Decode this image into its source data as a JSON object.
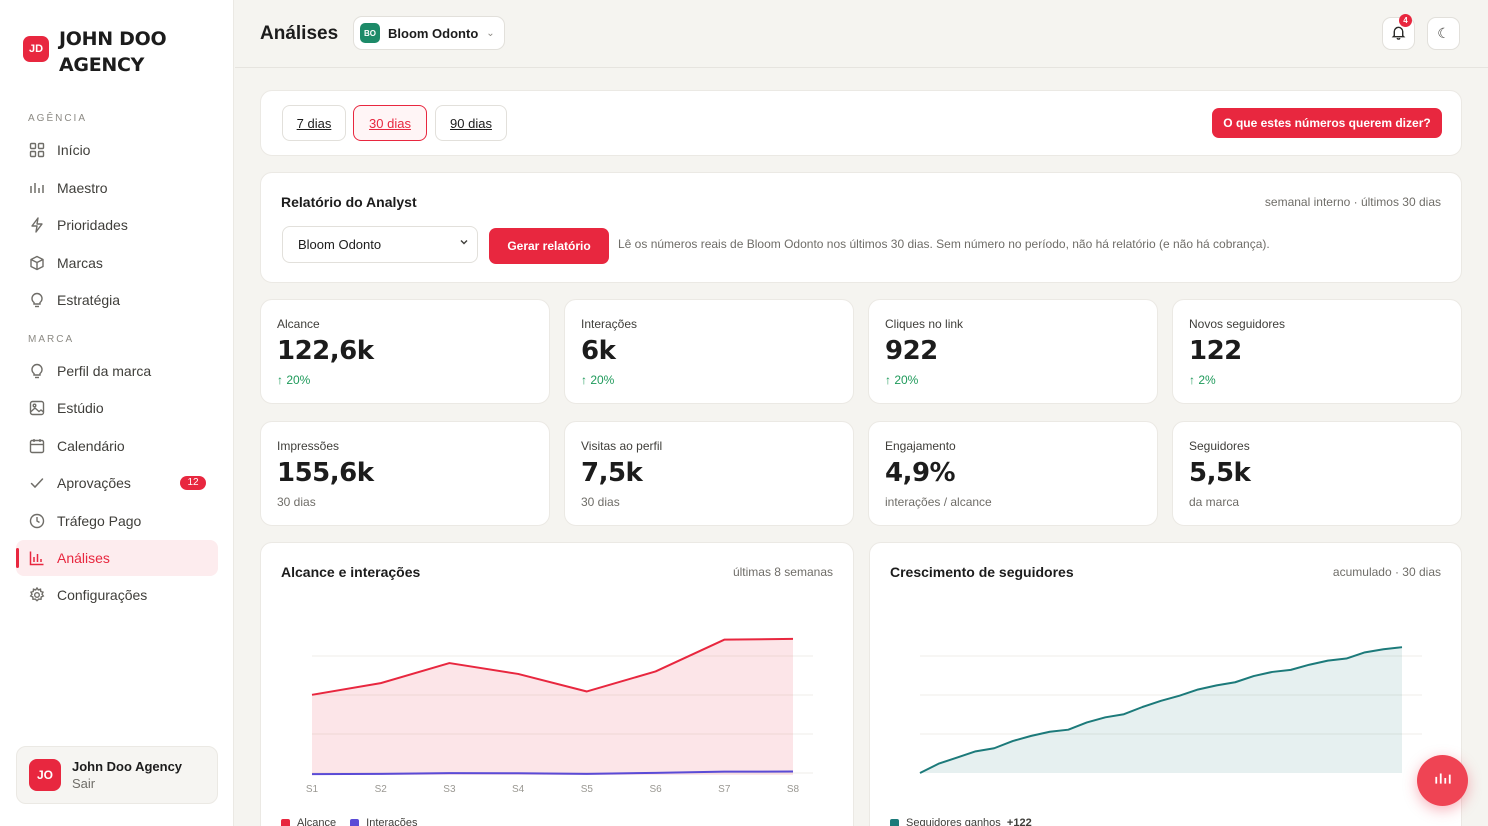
{
  "sidebar": {
    "brand_logo": "JD",
    "brand_line1": "JOHN DOO",
    "brand_line2": "AGENCY",
    "section_agencia": "AGÊNCIA",
    "section_marca": "MARCA",
    "items": [
      {
        "label": "Início",
        "icon": "grid-icon"
      },
      {
        "label": "Maestro",
        "icon": "bar-chart-icon"
      },
      {
        "label": "Prioridades",
        "icon": "bolt-icon"
      },
      {
        "label": "Marcas",
        "icon": "cube-icon"
      },
      {
        "label": "Estratégia",
        "icon": "lightbulb-icon"
      },
      {
        "label": "Perfil da marca",
        "icon": "lightbulb-icon"
      },
      {
        "label": "Estúdio",
        "icon": "image-icon"
      },
      {
        "label": "Calendário",
        "icon": "calendar-icon"
      },
      {
        "label": "Aprovações",
        "icon": "check-icon",
        "badge": "12"
      },
      {
        "label": "Tráfego Pago",
        "icon": "clock-icon"
      },
      {
        "label": "Análises",
        "icon": "analytics-icon",
        "active": true
      },
      {
        "label": "Configurações",
        "icon": "gear-icon"
      }
    ],
    "user": {
      "initials": "JO",
      "name": "John Doo Agency",
      "logout": "Sair"
    }
  },
  "header": {
    "title": "Análises",
    "client_badge": "BO",
    "client_name": "Bloom Odonto",
    "notifications": "4",
    "theme_icon": "☾"
  },
  "filters": {
    "ranges": [
      "7 dias",
      "30 dias",
      "90 dias"
    ],
    "active_range": "30 dias",
    "explain_button": "O que estes números querem dizer?"
  },
  "report": {
    "title": "Relatório do Analyst",
    "meta": "semanal interno · últimos 30 dias",
    "select_value": "Bloom Odonto",
    "generate_button": "Gerar relatório",
    "description": "Lê os números reais de Bloom Odonto nos últimos 30 dias. Sem número no período, não há relatório (e não há cobrança)."
  },
  "kpis": [
    {
      "label": "Alcance",
      "value": "122,6k",
      "sub": "↑ 20%",
      "positive": true
    },
    {
      "label": "Interações",
      "value": "6k",
      "sub": "↑ 20%",
      "positive": true
    },
    {
      "label": "Cliques no link",
      "value": "922",
      "sub": "↑ 20%",
      "positive": true
    },
    {
      "label": "Novos seguidores",
      "value": "122",
      "sub": "↑ 2%",
      "positive": true
    },
    {
      "label": "Impressões",
      "value": "155,6k",
      "sub": "30 dias",
      "positive": false
    },
    {
      "label": "Visitas ao perfil",
      "value": "7,5k",
      "sub": "30 dias",
      "positive": false
    },
    {
      "label": "Engajamento",
      "value": "4,9%",
      "sub": "interações / alcance",
      "positive": false
    },
    {
      "label": "Seguidores",
      "value": "5,5k",
      "sub": "da marca",
      "positive": false
    }
  ],
  "charts": {
    "reach": {
      "title": "Alcance e interações",
      "meta": "últimas 8 semanas"
    },
    "growth": {
      "title": "Crescimento de seguidores",
      "meta": "acumulado · 30 dias"
    }
  },
  "chart_data": [
    {
      "type": "area",
      "title": "Alcance e interações",
      "categories": [
        "S1",
        "S2",
        "S3",
        "S4",
        "S5",
        "S6",
        "S7",
        "S8"
      ],
      "ylim": [
        0,
        17000
      ],
      "grid": true,
      "legend": "bottom-left",
      "series": [
        {
          "name": "Alcance",
          "color": "#e8273f",
          "values": [
            9600,
            11000,
            13400,
            12100,
            10000,
            12400,
            16200,
            16300
          ]
        },
        {
          "name": "Interações",
          "color": "#5a4bd6",
          "values": [
            100,
            130,
            230,
            210,
            140,
            260,
            400,
            420
          ]
        }
      ]
    },
    {
      "type": "area",
      "title": "Crescimento de seguidores",
      "ylim": [
        5380,
        5508
      ],
      "grid": true,
      "legend": "bottom-left",
      "series": [
        {
          "name": "Seguidores ganhos",
          "total_label": "+122",
          "color": "#1c7a7a",
          "values": [
            5380,
            5389,
            5395,
            5401,
            5404,
            5411,
            5416,
            5420,
            5422,
            5429,
            5434,
            5437,
            5444,
            5450,
            5455,
            5461,
            5465,
            5468,
            5474,
            5478,
            5480,
            5485,
            5489,
            5491,
            5497,
            5500,
            5502
          ]
        }
      ]
    }
  ]
}
